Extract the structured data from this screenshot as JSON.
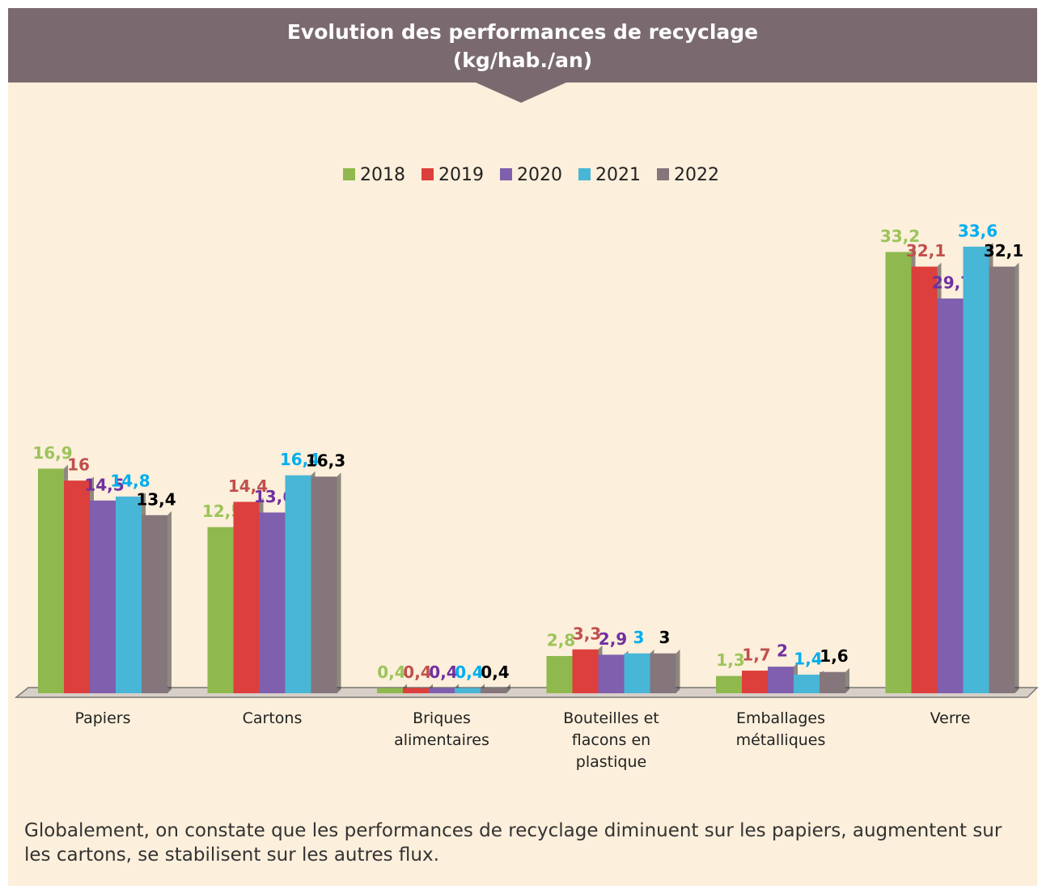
{
  "chart_data": {
    "type": "bar",
    "title": "Evolution des performances de recyclage",
    "subtitle": "(kg/hab./an)",
    "categories": [
      "Papiers",
      "Cartons",
      "Briques\nalimentaires",
      "Bouteilles et\nflacons en\nplastique",
      "Emballages\nmétalliques",
      "Verre"
    ],
    "series": [
      {
        "name": "2018",
        "color": "#8fb84e",
        "label_color": "#9cc45a",
        "values": [
          16.9,
          12.5,
          0.4,
          2.8,
          1.3,
          33.2
        ],
        "value_labels": [
          "16,9",
          "12,5",
          "0,4",
          "2,8",
          "1,3",
          "33,2"
        ]
      },
      {
        "name": "2019",
        "color": "#dc3f3c",
        "label_color": "#c0504d",
        "values": [
          16,
          14.4,
          0.4,
          3.3,
          1.7,
          32.1
        ],
        "value_labels": [
          "16",
          "14,4",
          "0,4",
          "3,3",
          "1,7",
          "32,1"
        ]
      },
      {
        "name": "2020",
        "color": "#7f5fae",
        "label_color": "#7030a0",
        "values": [
          14.5,
          13.6,
          0.4,
          2.9,
          2,
          29.7
        ],
        "value_labels": [
          "14,5",
          "13,6",
          "0,4",
          "2,9",
          "2",
          "29,7"
        ]
      },
      {
        "name": "2021",
        "color": "#48b6d6",
        "label_color": "#00aeef",
        "values": [
          14.8,
          16.4,
          0.4,
          3,
          1.4,
          33.6
        ],
        "value_labels": [
          "14,8",
          "16,4",
          "0,4",
          "3",
          "1,4",
          "33,6"
        ]
      },
      {
        "name": "2022",
        "color": "#85767c",
        "label_color": "#000000",
        "values": [
          13.4,
          16.3,
          0.4,
          3,
          1.6,
          32.1
        ],
        "value_labels": [
          "13,4",
          "16,3",
          "0,4",
          "3",
          "1,6",
          "32,1"
        ]
      }
    ],
    "note": "Globalement, on constate que les performances de recyclage diminuent sur les papiers, augmentent sur les cartons, se stabilisent sur les autres flux."
  }
}
